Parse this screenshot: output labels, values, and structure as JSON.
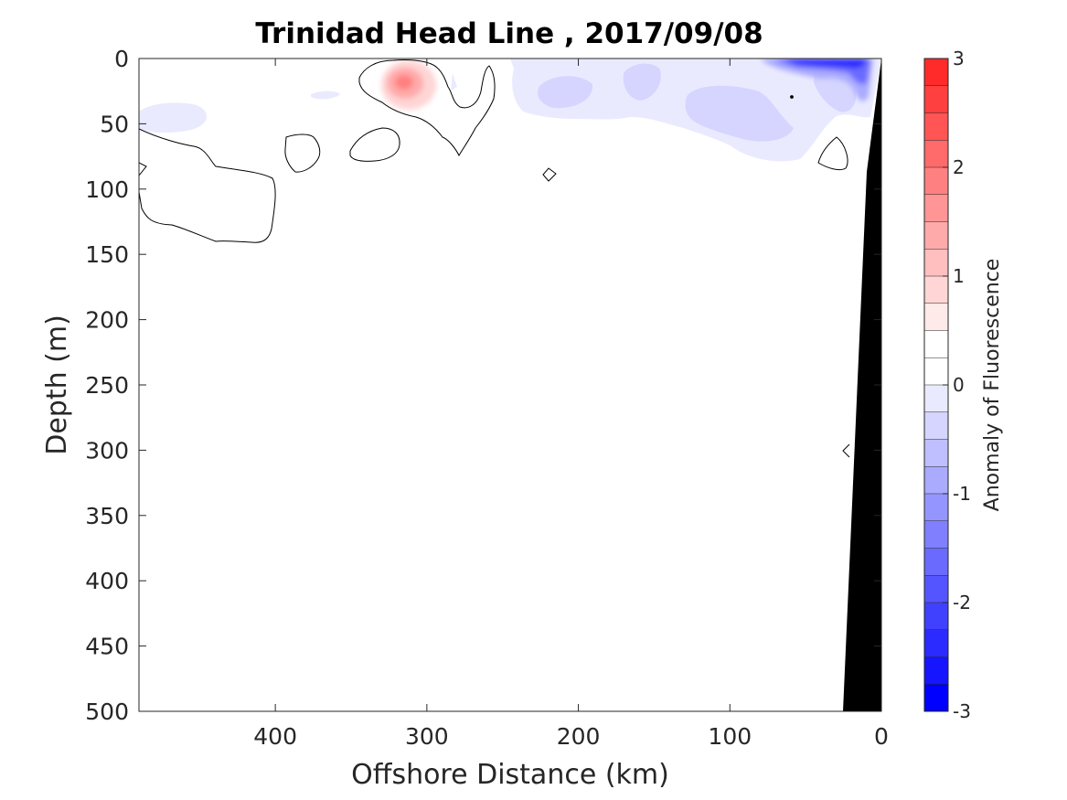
{
  "chart_data": {
    "type": "contour",
    "title": "Trinidad Head Line , 2017/09/08",
    "xlabel": "Offshore Distance (km)",
    "ylabel": "Depth (m)",
    "xlim": [
      490,
      0
    ],
    "ylim": [
      0,
      500
    ],
    "x_direction": "reversed",
    "y_direction": "reversed (depth increases downward)",
    "x_ticks": [
      400,
      300,
      200,
      100,
      0
    ],
    "y_ticks": [
      0,
      50,
      100,
      150,
      200,
      250,
      300,
      350,
      400,
      450,
      500
    ],
    "colorbar": {
      "label": "Anomaly of Fluorescence",
      "range": [
        -3,
        3
      ],
      "step": 0.25,
      "ticks": [
        3,
        2,
        1,
        0,
        -1,
        -2,
        -3
      ],
      "colors_low_to_high": [
        "#0000ff",
        "#1515ff",
        "#2b2bff",
        "#4040ff",
        "#5555ff",
        "#6a6aff",
        "#8080ff",
        "#9595ff",
        "#aaaaff",
        "#bfbfff",
        "#d5d5ff",
        "#eaeaff",
        "#ffffff",
        "#ffffff",
        "#ffeaea",
        "#ffd5d5",
        "#ffbfbf",
        "#ffaaaa",
        "#ff9595",
        "#ff8080",
        "#ff6a6a",
        "#ff5555",
        "#ff4040",
        "#ff2b2b",
        "#ff1515",
        "#ff0000"
      ]
    },
    "positive_anomalies": [
      {
        "x_km": 312,
        "depth_m": 18,
        "peak_value": 1.0
      }
    ],
    "negative_anomalies": [
      {
        "x_km_range": [
          490,
          440
        ],
        "depth_m_range": [
          30,
          55
        ],
        "min_value": -0.25
      },
      {
        "x_km_range": [
          245,
          0
        ],
        "depth_m_range": [
          0,
          85
        ],
        "min_value": -0.5
      },
      {
        "x_km_range": [
          75,
          10
        ],
        "depth_m_range": [
          0,
          30
        ],
        "min_value": -2.5
      }
    ],
    "zero_contours": "black outlines around near-zero anomaly regions between 0 and 150 m depth",
    "bathymetry": "black seafloor wedge at the nearshore (right) edge, reaching the surface at 0 km"
  }
}
